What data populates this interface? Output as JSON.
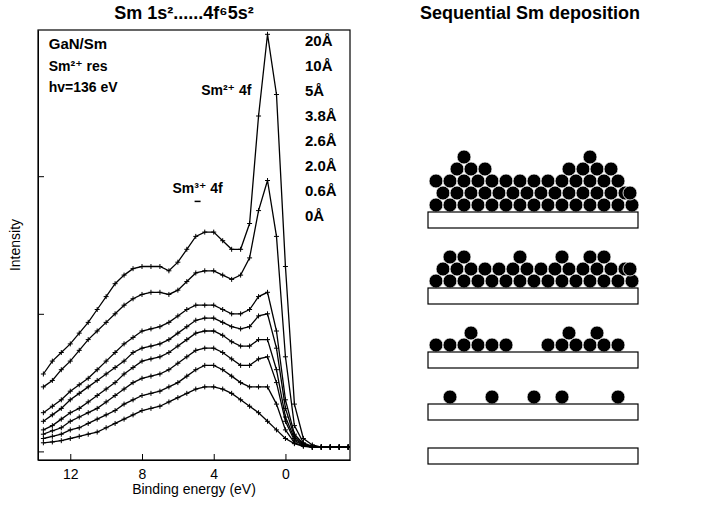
{
  "chart_data": {
    "type": "line",
    "title": "Sm 1s²......4f⁶5s²",
    "x_label": "Binding energy (eV)",
    "y_label": "Intensity",
    "x": [
      13.5,
      13,
      12.5,
      12,
      11.5,
      11,
      10.5,
      10,
      9.5,
      9,
      8.5,
      8,
      7.5,
      7,
      6.5,
      6,
      5.5,
      5,
      4.5,
      4,
      3.5,
      3,
      2.5,
      2,
      1.5,
      1,
      0.5,
      0,
      -0.5,
      -1,
      -1.5,
      -2,
      -2.5,
      -3,
      -3.5
    ],
    "xlim": [
      13.8,
      -3.6
    ],
    "xticks": [
      12,
      8,
      4,
      0
    ],
    "ylim": [
      0,
      100
    ],
    "yticks": [
      2,
      34,
      66
    ],
    "tick_labels": "x",
    "color": "#000000",
    "marker": "plus",
    "legend": "upper right",
    "series": [
      {
        "name": "20Å",
        "values": [
          20,
          23,
          25,
          27,
          29.5,
          32,
          35,
          38,
          41,
          43,
          44.5,
          45,
          45,
          45,
          44,
          46,
          49,
          52,
          53,
          53,
          51,
          49,
          49,
          55,
          80,
          99,
          85,
          45,
          13,
          5,
          3.5,
          3,
          3,
          3,
          3
        ]
      },
      {
        "name": "10Å",
        "values": [
          17,
          18.5,
          21,
          23,
          25.5,
          28,
          30,
          32,
          34,
          36,
          37.5,
          38.5,
          39,
          39,
          38.5,
          39.5,
          41.5,
          43.5,
          44,
          44,
          43,
          42,
          43,
          47,
          58,
          65,
          52,
          24,
          8,
          4,
          3.2,
          3,
          3,
          3,
          3
        ]
      },
      {
        "name": "5Å",
        "values": [
          11,
          12.5,
          14,
          16,
          17.5,
          19,
          21,
          23,
          25,
          27,
          28.5,
          30,
          30.5,
          31,
          32,
          33.5,
          35,
          36,
          36,
          36,
          35,
          34,
          34,
          35,
          38,
          39,
          30,
          14,
          6,
          3.8,
          3,
          3,
          3,
          3,
          3
        ]
      },
      {
        "name": "3.8Å",
        "values": [
          9,
          10.5,
          12,
          14,
          15.5,
          17,
          18.5,
          20,
          21.5,
          23,
          25,
          26,
          26.5,
          27,
          28,
          29.5,
          31,
          32.5,
          33,
          33,
          32,
          31,
          30.5,
          31,
          33.5,
          34,
          26,
          12,
          5.5,
          3.6,
          3,
          3,
          3,
          3,
          3
        ]
      },
      {
        "name": "2.6Å",
        "values": [
          7,
          8,
          9.5,
          11,
          12,
          13.5,
          15,
          16.5,
          18,
          20,
          21.5,
          23,
          23.5,
          24,
          25,
          26.5,
          28,
          29.5,
          30,
          30,
          29,
          27.5,
          26.5,
          26.5,
          28,
          28,
          21,
          10,
          5,
          3.5,
          3,
          3,
          3,
          3,
          3
        ]
      },
      {
        "name": "2.0Å",
        "values": [
          6,
          6.8,
          7.5,
          9,
          10,
          11,
          12,
          13.5,
          15,
          16.5,
          18,
          19,
          19.5,
          20,
          21,
          22.5,
          24,
          25.5,
          26,
          26,
          25,
          23.5,
          22,
          22,
          23.5,
          24,
          18,
          9,
          4.5,
          3.4,
          3,
          3,
          3,
          3,
          3
        ]
      },
      {
        "name": "0.6Å",
        "values": [
          5,
          5.5,
          6,
          7,
          7.5,
          8.5,
          9.5,
          10.5,
          11.5,
          13,
          14,
          15,
          15.5,
          16,
          17,
          18,
          19.5,
          21,
          22,
          22,
          21,
          19.5,
          18,
          17,
          17,
          17,
          13,
          7,
          4,
          3.3,
          3,
          3,
          3,
          3,
          3
        ]
      },
      {
        "name": "0Å",
        "values": [
          4,
          4.2,
          4.5,
          5,
          5.5,
          6,
          6.5,
          7.5,
          8.5,
          9.5,
          10.5,
          11.5,
          12,
          12.5,
          13.5,
          14.5,
          15.5,
          16.5,
          17,
          17,
          16.5,
          15.5,
          14,
          12.5,
          11,
          9,
          7,
          5,
          3.8,
          3.2,
          3,
          3,
          3,
          3,
          3
        ]
      }
    ],
    "annotations": [
      {
        "text": "GaN/Sm",
        "x": 13.2,
        "y": 95.5
      },
      {
        "text": "Sm²⁺ res",
        "x": 13.2,
        "y": 90.5
      },
      {
        "text": "hv=136 eV",
        "x": 13.2,
        "y": 85.5
      },
      {
        "text": "Sm³⁺ 4f",
        "x": 4.9,
        "y": 62
      },
      {
        "text": "Sm²⁺ 4f",
        "x": 3.3,
        "y": 85
      }
    ]
  },
  "diagram": {
    "title": "Sequential Sm deposition"
  }
}
